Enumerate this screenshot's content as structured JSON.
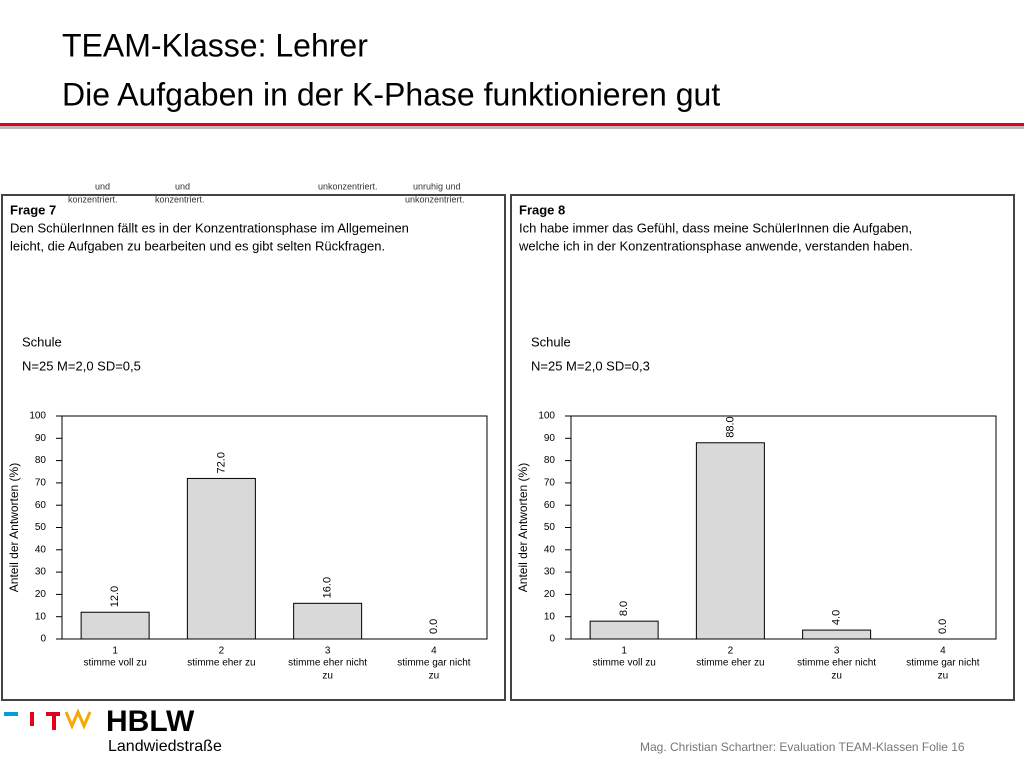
{
  "slide": {
    "title_lines": [
      "TEAM-Klasse: Lehrer",
      "Die Aufgaben in der K-Phase funktionieren gut"
    ],
    "footer": "Mag. Christian Schartner: Evaluation TEAM-Klassen Folie 16",
    "logo": "HBLW",
    "logo_sub": "Landwiedstraße",
    "cropped_text": [
      "und",
      "konzentriert.",
      "und",
      "konzentriert.",
      "unkonzentriert.",
      "unruhig und",
      "unkonzentriert."
    ]
  },
  "chart_data": [
    {
      "type": "bar",
      "title": "Frage 7",
      "question": [
        "Den SchülerInnen fällt es in der Konzentrationsphase im Allgemeinen",
        "leicht, die Aufgaben zu bearbeiten und es gibt selten Rückfragen."
      ],
      "group": "Schule",
      "stats": "N=25 M=2,0 SD=0,5",
      "y_label": "Anteil der Antworten (%)",
      "categories": [
        "1",
        "2",
        "3",
        "4"
      ],
      "category_labels": [
        [
          "stimme voll zu"
        ],
        [
          "stimme eher zu"
        ],
        [
          "stimme eher nicht",
          "zu"
        ],
        [
          "stimme gar nicht",
          "zu"
        ]
      ],
      "values": [
        12,
        72,
        16,
        0
      ],
      "value_labels": [
        "12.0",
        "72.0",
        "16.0",
        "0.0"
      ],
      "color": "#d9d9d9",
      "ylim": [
        0,
        100
      ],
      "yticks": [
        0,
        10,
        20,
        30,
        40,
        50,
        60,
        70,
        80,
        90,
        100
      ]
    },
    {
      "type": "bar",
      "title": "Frage 8",
      "question": [
        "Ich habe immer das Gefühl, dass meine SchülerInnen die Aufgaben,",
        "welche ich in der Konzentrationsphase anwende, verstanden haben."
      ],
      "group": "Schule",
      "stats": "N=25 M=2,0 SD=0,3",
      "y_label": "Anteil der Antworten (%)",
      "categories": [
        "1",
        "2",
        "3",
        "4"
      ],
      "category_labels": [
        [
          "stimme voll zu"
        ],
        [
          "stimme eher zu"
        ],
        [
          "stimme eher nicht",
          "zu"
        ],
        [
          "stimme gar nicht",
          "zu"
        ]
      ],
      "values": [
        8,
        88,
        4,
        0
      ],
      "value_labels": [
        "8.0",
        "88.0",
        "4.0",
        "0.0"
      ],
      "color": "#d9d9d9",
      "ylim": [
        0,
        100
      ],
      "yticks": [
        0,
        10,
        20,
        30,
        40,
        50,
        60,
        70,
        80,
        90,
        100
      ]
    }
  ]
}
